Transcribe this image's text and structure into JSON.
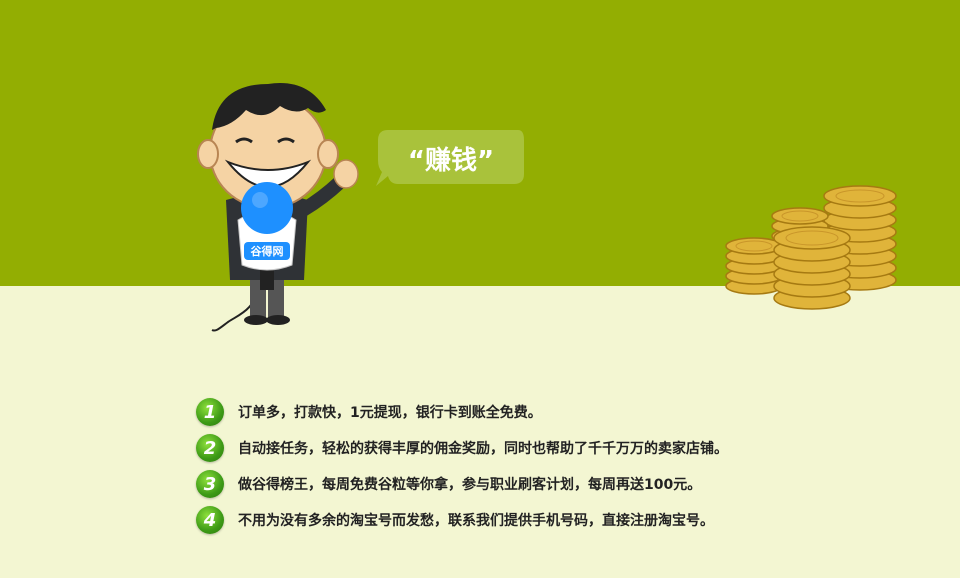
{
  "banner": {
    "speech_bubble": "“赚钱”",
    "microphone_logo": "谷得网"
  },
  "features": [
    {
      "number": "1",
      "text": "订单多，打款快，1元提现，银行卡到账全免费。"
    },
    {
      "number": "2",
      "text": "自动接任务，轻松的获得丰厚的佣金奖励，同时也帮助了千千万万的卖家店铺。"
    },
    {
      "number": "3",
      "text": "做谷得榜王，每周免费谷粒等你拿，参与职业刷客计划，每周再送100元。"
    },
    {
      "number": "4",
      "text": "不用为没有多余的淘宝号而发愁，联系我们提供手机号码，直接注册淘宝号。"
    }
  ],
  "colors": {
    "top_band": "#93ae02",
    "bottom_band": "#f3f6d2",
    "bubble": "#a9c23b",
    "badge_green": "#3d9a16",
    "coin_gold": "#e0b43a"
  }
}
